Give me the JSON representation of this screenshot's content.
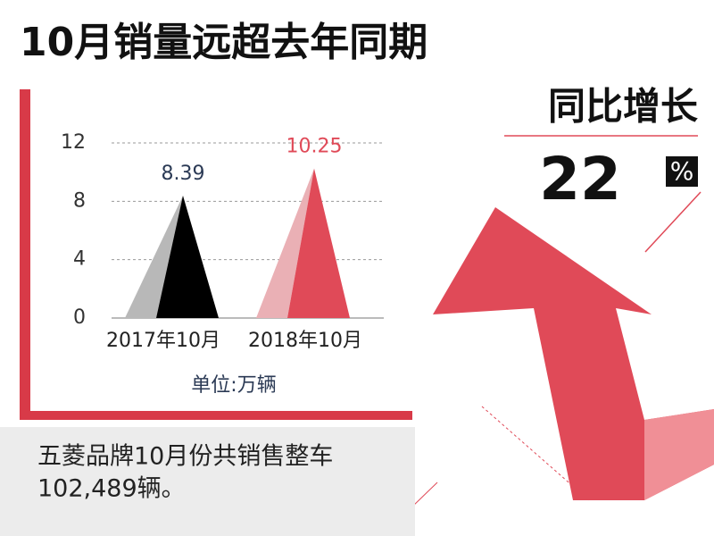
{
  "header": {
    "title": "10月销量远超去年同期"
  },
  "growth": {
    "label": "同比增长",
    "value": "22",
    "unit": "%"
  },
  "chart_data": {
    "type": "bar",
    "categories": [
      "2017年10月",
      "2018年10月"
    ],
    "values": [
      8.39,
      10.25
    ],
    "colors": [
      "#000000",
      "#e04a58"
    ],
    "shade_colors": [
      "#b8b8b8",
      "#eab0b5"
    ],
    "label_colors": [
      "#2b3a55",
      "#e04a58"
    ],
    "ylim": [
      0,
      12
    ],
    "yticks": [
      0,
      4,
      8,
      12
    ],
    "grid": true,
    "unit_label": "单位:万辆"
  },
  "caption": {
    "lines": [
      "五菱品牌10月份共销售整车",
      "102,489辆。"
    ]
  }
}
